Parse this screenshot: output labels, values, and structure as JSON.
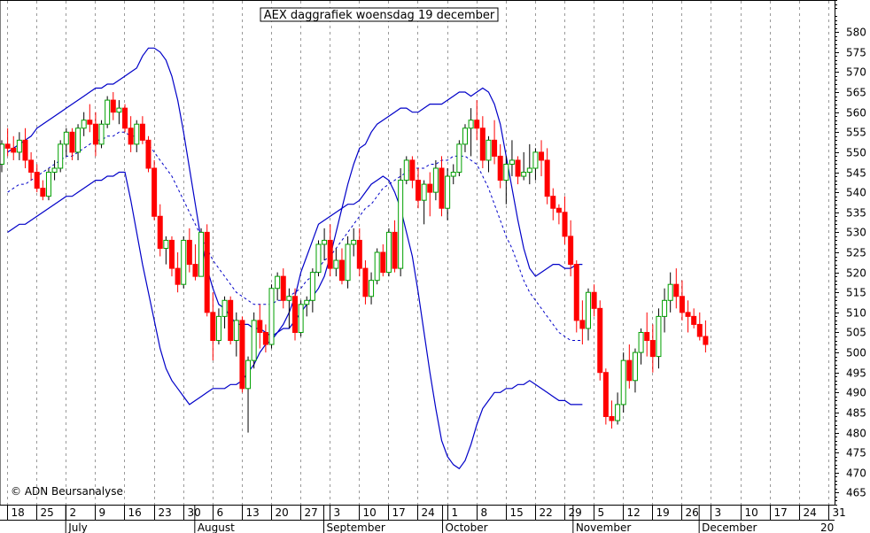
{
  "chart_data": {
    "type": "candlestick",
    "title": "AEX daggrafiek woensdag 19 december",
    "credit": "© ADN Beursanalyse",
    "ylim": [
      462,
      588
    ],
    "y_ticks": [
      465,
      470,
      475,
      480,
      485,
      490,
      495,
      500,
      505,
      510,
      515,
      520,
      525,
      530,
      535,
      540,
      545,
      550,
      555,
      560,
      565,
      570,
      575,
      580
    ],
    "x_tick_labels": [
      "18",
      "25",
      "2",
      "9",
      "16",
      "23",
      "30",
      "6",
      "13",
      "20",
      "27",
      "3",
      "10",
      "17",
      "24",
      "1",
      "8",
      "15",
      "22",
      "29",
      "5",
      "12",
      "19",
      "26",
      "3",
      "10",
      "17",
      "24",
      "31"
    ],
    "months": [
      "July",
      "August",
      "September",
      "October",
      "November",
      "December"
    ],
    "next_year_label": "20",
    "grid": true,
    "colors": {
      "up": "#00a000",
      "down": "#ff0000",
      "band": "#0000c8",
      "average": "#0000c8",
      "grid": "#9a9a9a"
    },
    "series": [
      {
        "name": "AEX",
        "candles": [
          [
            547,
            553,
            545,
            552
          ],
          [
            552,
            556,
            549,
            551
          ],
          [
            551,
            554,
            548,
            550
          ],
          [
            550,
            555,
            548,
            553
          ],
          [
            553,
            556,
            546,
            548
          ],
          [
            548,
            550,
            543,
            545
          ],
          [
            545,
            547,
            540,
            541
          ],
          [
            541,
            543,
            538,
            539
          ],
          [
            539,
            546,
            538,
            545
          ],
          [
            545,
            548,
            543,
            546
          ],
          [
            546,
            553,
            545,
            552
          ],
          [
            552,
            556,
            549,
            555
          ],
          [
            555,
            556,
            548,
            550
          ],
          [
            550,
            557,
            548,
            556
          ],
          [
            556,
            560,
            554,
            558
          ],
          [
            558,
            562,
            555,
            557
          ],
          [
            557,
            560,
            549,
            552
          ],
          [
            552,
            558,
            551,
            557
          ],
          [
            557,
            564,
            556,
            563
          ],
          [
            563,
            565,
            558,
            560
          ],
          [
            560,
            563,
            557,
            561
          ],
          [
            561,
            562,
            555,
            556
          ],
          [
            556,
            559,
            550,
            552
          ],
          [
            552,
            558,
            550,
            557
          ],
          [
            557,
            559,
            552,
            553
          ],
          [
            553,
            554,
            545,
            546
          ],
          [
            546,
            548,
            533,
            534
          ],
          [
            534,
            537,
            524,
            526
          ],
          [
            526,
            529,
            522,
            528
          ],
          [
            528,
            529,
            519,
            521
          ],
          [
            521,
            525,
            515,
            517
          ],
          [
            517,
            529,
            516,
            528
          ],
          [
            528,
            531,
            520,
            522
          ],
          [
            522,
            527,
            518,
            519
          ],
          [
            519,
            531,
            519,
            530
          ],
          [
            530,
            532,
            509,
            510
          ],
          [
            510,
            515,
            498,
            503
          ],
          [
            503,
            511,
            502,
            509
          ],
          [
            509,
            514,
            506,
            513
          ],
          [
            513,
            514,
            502,
            503
          ],
          [
            503,
            510,
            499,
            508
          ],
          [
            508,
            509,
            490,
            491
          ],
          [
            491,
            499,
            480,
            498
          ],
          [
            498,
            510,
            496,
            508
          ],
          [
            508,
            512,
            501,
            505
          ],
          [
            505,
            507,
            500,
            502
          ],
          [
            502,
            517,
            501,
            516
          ],
          [
            516,
            520,
            513,
            519
          ],
          [
            519,
            521,
            511,
            513
          ],
          [
            513,
            516,
            506,
            514
          ],
          [
            514,
            516,
            503,
            505
          ],
          [
            505,
            513,
            504,
            512
          ],
          [
            512,
            514,
            509,
            513
          ],
          [
            513,
            521,
            510,
            520
          ],
          [
            520,
            528,
            519,
            527
          ],
          [
            527,
            531,
            523,
            528
          ],
          [
            528,
            532,
            519,
            521
          ],
          [
            521,
            526,
            519,
            523
          ],
          [
            523,
            526,
            517,
            518
          ],
          [
            518,
            529,
            516,
            527
          ],
          [
            527,
            531,
            524,
            528
          ],
          [
            528,
            531,
            519,
            521
          ],
          [
            521,
            523,
            512,
            514
          ],
          [
            514,
            520,
            512,
            518
          ],
          [
            518,
            526,
            517,
            525
          ],
          [
            525,
            527,
            519,
            520
          ],
          [
            520,
            531,
            519,
            530
          ],
          [
            530,
            533,
            520,
            521
          ],
          [
            521,
            546,
            519,
            543
          ],
          [
            543,
            549,
            542,
            548
          ],
          [
            548,
            549,
            541,
            543
          ],
          [
            543,
            546,
            536,
            538
          ],
          [
            538,
            543,
            532,
            542
          ],
          [
            542,
            545,
            534,
            540
          ],
          [
            540,
            548,
            538,
            546
          ],
          [
            546,
            549,
            534,
            536
          ],
          [
            536,
            546,
            533,
            544
          ],
          [
            544,
            547,
            542,
            545
          ],
          [
            545,
            553,
            544,
            552
          ],
          [
            552,
            557,
            550,
            556
          ],
          [
            556,
            561,
            549,
            558
          ],
          [
            558,
            563,
            553,
            556
          ],
          [
            556,
            559,
            546,
            548
          ],
          [
            548,
            554,
            545,
            553
          ],
          [
            553,
            558,
            547,
            549
          ],
          [
            549,
            552,
            541,
            543
          ],
          [
            543,
            549,
            537,
            547
          ],
          [
            547,
            553,
            544,
            548
          ],
          [
            548,
            549,
            542,
            544
          ],
          [
            544,
            550,
            543,
            545
          ],
          [
            545,
            552,
            542,
            546
          ],
          [
            546,
            551,
            543,
            550
          ],
          [
            550,
            553,
            544,
            548
          ],
          [
            548,
            551,
            537,
            539
          ],
          [
            539,
            541,
            533,
            536
          ],
          [
            536,
            537,
            532,
            535
          ],
          [
            535,
            539,
            527,
            529
          ],
          [
            529,
            533,
            519,
            522
          ],
          [
            522,
            523,
            505,
            508
          ],
          [
            508,
            513,
            502,
            506
          ],
          [
            506,
            516,
            503,
            515
          ],
          [
            515,
            517,
            509,
            511
          ],
          [
            511,
            513,
            493,
            495
          ],
          [
            495,
            496,
            482,
            484
          ],
          [
            484,
            488,
            481,
            483
          ],
          [
            483,
            490,
            482,
            487
          ],
          [
            487,
            500,
            485,
            498
          ],
          [
            498,
            502,
            491,
            493
          ],
          [
            493,
            501,
            490,
            500
          ],
          [
            500,
            506,
            497,
            505
          ],
          [
            505,
            510,
            499,
            503
          ],
          [
            503,
            507,
            495,
            499
          ],
          [
            499,
            511,
            496,
            509
          ],
          [
            509,
            516,
            505,
            513
          ],
          [
            513,
            520,
            510,
            517
          ],
          [
            517,
            521,
            511,
            514
          ],
          [
            514,
            518,
            508,
            510
          ],
          [
            510,
            513,
            505,
            509
          ],
          [
            509,
            511,
            506,
            507
          ],
          [
            507,
            510,
            503,
            504
          ],
          [
            504,
            508,
            500,
            502
          ]
        ]
      },
      {
        "name": "Bollinger boven",
        "values": [
          550,
          551,
          552,
          553,
          554,
          556,
          557,
          558,
          559,
          560,
          561,
          562,
          563,
          564,
          565,
          566,
          566,
          567,
          567,
          568,
          569,
          570,
          571,
          574,
          576,
          576,
          575,
          573,
          569,
          563,
          555,
          546,
          537,
          528,
          521,
          516,
          512,
          511,
          509,
          507,
          507,
          507,
          506,
          506,
          505,
          504,
          505,
          506,
          506,
          508,
          510,
          512,
          514,
          516,
          519,
          524,
          530,
          536,
          542,
          547,
          551,
          552,
          555,
          557,
          558,
          559,
          560,
          561,
          561,
          560,
          560,
          561,
          562,
          562,
          562,
          563,
          564,
          565,
          565,
          564,
          565,
          566,
          565,
          562,
          557,
          549,
          541,
          533,
          526,
          521,
          519,
          520,
          521,
          522,
          522,
          521,
          521,
          522,
          522
        ]
      },
      {
        "name": "Gemiddelde",
        "values": [
          540,
          541,
          542,
          542,
          543,
          544,
          545,
          546,
          547,
          548,
          549,
          549,
          550,
          551,
          552,
          553,
          553,
          554,
          554,
          555,
          555,
          554,
          554,
          553,
          552,
          550,
          548,
          546,
          544,
          541,
          538,
          535,
          532,
          529,
          526,
          523,
          521,
          519,
          517,
          515,
          514,
          513,
          512,
          512,
          512,
          512,
          513,
          513,
          514,
          515,
          516,
          518,
          519,
          521,
          523,
          524,
          526,
          528,
          530,
          532,
          534,
          536,
          537,
          539,
          541,
          542,
          543,
          544,
          545,
          546,
          546,
          546,
          547,
          547,
          548,
          548,
          549,
          549,
          549,
          548,
          547,
          544,
          541,
          537,
          533,
          529,
          526,
          522,
          518,
          515,
          513,
          511,
          509,
          507,
          505,
          504,
          503,
          503,
          503
        ]
      },
      {
        "name": "Bollinger onder",
        "values": [
          530,
          531,
          532,
          532,
          533,
          534,
          535,
          536,
          537,
          538,
          539,
          539,
          540,
          541,
          542,
          543,
          543,
          544,
          544,
          545,
          545,
          538,
          530,
          522,
          515,
          508,
          501,
          496,
          493,
          491,
          489,
          487,
          488,
          489,
          490,
          491,
          491,
          491,
          492,
          492,
          493,
          495,
          497,
          500,
          502,
          503,
          505,
          507,
          510,
          514,
          520,
          524,
          528,
          532,
          533,
          534,
          535,
          536,
          537,
          537,
          538,
          540,
          542,
          543,
          544,
          543,
          540,
          536,
          530,
          524,
          515,
          505,
          495,
          486,
          478,
          474,
          472,
          471,
          473,
          477,
          482,
          486,
          488,
          490,
          490,
          491,
          491,
          492,
          492,
          493,
          492,
          491,
          490,
          489,
          488,
          488,
          487,
          487,
          487
        ]
      }
    ]
  }
}
